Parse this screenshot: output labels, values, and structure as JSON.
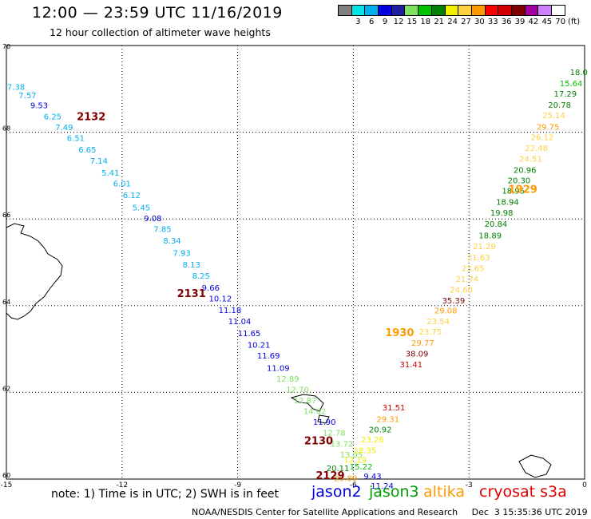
{
  "header": {
    "title": "12:00 — 23:59 UTC 11/16/2019",
    "subtitle": "12 hour collection of altimeter wave heights"
  },
  "legend": {
    "colors": [
      "#808080",
      "#00e5e5",
      "#00b0f0",
      "#0000e0",
      "#1f1fa0",
      "#80e060",
      "#00c000",
      "#008000",
      "#f0f000",
      "#ffd040",
      "#ff9a00",
      "#ff0000",
      "#d00000",
      "#800000",
      "#a000a0",
      "#cc80ff",
      "#ffffff",
      "#000000"
    ],
    "labels": [
      "3",
      "6",
      "9",
      "12",
      "15",
      "18",
      "21",
      "24",
      "27",
      "30",
      "33",
      "36",
      "39",
      "42",
      "45",
      "70",
      "(ft)"
    ]
  },
  "map": {
    "lat_ticks": [
      "70",
      "68",
      "66",
      "64",
      "62",
      "60"
    ],
    "lon_ticks": [
      "-15",
      "-12",
      "-9",
      "-6",
      "-3",
      "0"
    ],
    "passes": [
      {
        "label": "2132",
        "color": "#800000",
        "lon": -12.8,
        "lat": 68.28
      },
      {
        "label": "2131",
        "color": "#800000",
        "lon": -10.2,
        "lat": 64.2
      },
      {
        "label": "2130",
        "color": "#800000",
        "lon": -6.9,
        "lat": 60.8
      },
      {
        "label": "2129",
        "color": "#800000",
        "lon": -6.6,
        "lat": 60.0
      },
      {
        "label": "1929",
        "color": "#ff9a00",
        "lon": -1.6,
        "lat": 66.6
      },
      {
        "label": "1930",
        "color": "#ff9a00",
        "lon": -4.8,
        "lat": 63.3
      }
    ],
    "swh": [
      {
        "v": "7.38",
        "c": "#00b0f0",
        "lon": -14.75,
        "lat": 68.98
      },
      {
        "v": "7.57",
        "c": "#00b0f0",
        "lon": -14.45,
        "lat": 68.78
      },
      {
        "v": "9.53",
        "c": "#0000e0",
        "lon": -14.15,
        "lat": 68.55
      },
      {
        "v": "6.25",
        "c": "#00b0f0",
        "lon": -13.8,
        "lat": 68.3
      },
      {
        "v": "7.49",
        "c": "#00b0f0",
        "lon": -13.5,
        "lat": 68.05
      },
      {
        "v": "6.51",
        "c": "#00b0f0",
        "lon": -13.2,
        "lat": 67.8
      },
      {
        "v": "6.65",
        "c": "#00b0f0",
        "lon": -12.9,
        "lat": 67.53
      },
      {
        "v": "7.14",
        "c": "#00b0f0",
        "lon": -12.6,
        "lat": 67.27
      },
      {
        "v": "5.41",
        "c": "#00b0f0",
        "lon": -12.3,
        "lat": 67.0
      },
      {
        "v": "6.01",
        "c": "#00b0f0",
        "lon": -12.0,
        "lat": 66.75
      },
      {
        "v": "6.12",
        "c": "#00b0f0",
        "lon": -11.75,
        "lat": 66.48
      },
      {
        "v": "5.45",
        "c": "#00b0f0",
        "lon": -11.5,
        "lat": 66.2
      },
      {
        "v": "9.08",
        "c": "#0000e0",
        "lon": -11.2,
        "lat": 65.95
      },
      {
        "v": "7.85",
        "c": "#00b0f0",
        "lon": -10.95,
        "lat": 65.7
      },
      {
        "v": "8.34",
        "c": "#00b0f0",
        "lon": -10.7,
        "lat": 65.43
      },
      {
        "v": "7.93",
        "c": "#00b0f0",
        "lon": -10.45,
        "lat": 65.15
      },
      {
        "v": "8.13",
        "c": "#00b0f0",
        "lon": -10.2,
        "lat": 64.88
      },
      {
        "v": "8.25",
        "c": "#00b0f0",
        "lon": -9.95,
        "lat": 64.62
      },
      {
        "v": "9.66",
        "c": "#0000e0",
        "lon": -9.7,
        "lat": 64.35
      },
      {
        "v": "10.12",
        "c": "#0000e0",
        "lon": -9.45,
        "lat": 64.1
      },
      {
        "v": "11.18",
        "c": "#0000e0",
        "lon": -9.2,
        "lat": 63.83
      },
      {
        "v": "11.04",
        "c": "#0000e0",
        "lon": -8.95,
        "lat": 63.57
      },
      {
        "v": "11.65",
        "c": "#0000e0",
        "lon": -8.7,
        "lat": 63.3
      },
      {
        "v": "10.21",
        "c": "#0000e0",
        "lon": -8.45,
        "lat": 63.03
      },
      {
        "v": "11.69",
        "c": "#0000e0",
        "lon": -8.2,
        "lat": 62.78
      },
      {
        "v": "11.09",
        "c": "#0000e0",
        "lon": -7.95,
        "lat": 62.5
      },
      {
        "v": "12.89",
        "c": "#80e060",
        "lon": -7.7,
        "lat": 62.25
      },
      {
        "v": "12.70",
        "c": "#80e060",
        "lon": -7.45,
        "lat": 62.0
      },
      {
        "v": "12.87",
        "c": "#80e060",
        "lon": -7.25,
        "lat": 61.75
      },
      {
        "v": "14.02",
        "c": "#80e060",
        "lon": -7.0,
        "lat": 61.5
      },
      {
        "v": "11.90",
        "c": "#0000e0",
        "lon": -6.75,
        "lat": 61.25
      },
      {
        "v": "12.78",
        "c": "#80e060",
        "lon": -6.5,
        "lat": 61.0
      },
      {
        "v": "13.72",
        "c": "#80e060",
        "lon": -6.3,
        "lat": 60.75
      },
      {
        "v": "13.05",
        "c": "#80e060",
        "lon": -6.05,
        "lat": 60.5
      },
      {
        "v": "15.22",
        "c": "#00c000",
        "lon": -5.8,
        "lat": 60.22
      },
      {
        "v": "9.43",
        "c": "#0000e0",
        "lon": -5.5,
        "lat": 60.0
      },
      {
        "v": "11.24",
        "c": "#0000e0",
        "lon": -5.25,
        "lat": 59.78
      },
      {
        "v": "20.11",
        "c": "#008000",
        "lon": -6.4,
        "lat": 60.18
      },
      {
        "v": "29.89",
        "c": "#ff9a00",
        "lon": -6.2,
        "lat": 59.95
      },
      {
        "v": "12.19",
        "c": "#f0f000",
        "lon": -5.95,
        "lat": 60.38
      },
      {
        "v": "18.35",
        "c": "#f0f000",
        "lon": -5.7,
        "lat": 60.6
      },
      {
        "v": "23.26",
        "c": "#f0f000",
        "lon": -5.5,
        "lat": 60.85
      },
      {
        "v": "20.92",
        "c": "#008000",
        "lon": -5.3,
        "lat": 61.08
      },
      {
        "v": "29.31",
        "c": "#ff9a00",
        "lon": -5.1,
        "lat": 61.32
      },
      {
        "v": "31.51",
        "c": "#d00000",
        "lon": -4.95,
        "lat": 61.58
      },
      {
        "v": "31.41",
        "c": "#d00000",
        "lon": -4.5,
        "lat": 62.58
      },
      {
        "v": "38.09",
        "c": "#800000",
        "lon": -4.35,
        "lat": 62.83
      },
      {
        "v": "29.77",
        "c": "#ff9a00",
        "lon": -4.2,
        "lat": 63.08
      },
      {
        "v": "23.75",
        "c": "#ffd040",
        "lon": -4.0,
        "lat": 63.33
      },
      {
        "v": "23.54",
        "c": "#ffd040",
        "lon": -3.8,
        "lat": 63.57
      },
      {
        "v": "29.08",
        "c": "#ff9a00",
        "lon": -3.6,
        "lat": 63.82
      },
      {
        "v": "35.39",
        "c": "#800000",
        "lon": -3.4,
        "lat": 64.05
      },
      {
        "v": "24.60",
        "c": "#ffd040",
        "lon": -3.2,
        "lat": 64.3
      },
      {
        "v": "21.74",
        "c": "#ffd040",
        "lon": -3.05,
        "lat": 64.55
      },
      {
        "v": "23.65",
        "c": "#ffd040",
        "lon": -2.9,
        "lat": 64.8
      },
      {
        "v": "21.63",
        "c": "#ffd040",
        "lon": -2.75,
        "lat": 65.05
      },
      {
        "v": "21.29",
        "c": "#ffd040",
        "lon": -2.6,
        "lat": 65.3
      },
      {
        "v": "18.89",
        "c": "#008000",
        "lon": -2.45,
        "lat": 65.55
      },
      {
        "v": "20.84",
        "c": "#008000",
        "lon": -2.3,
        "lat": 65.82
      },
      {
        "v": "19.98",
        "c": "#008000",
        "lon": -2.15,
        "lat": 66.08
      },
      {
        "v": "18.94",
        "c": "#008000",
        "lon": -2.0,
        "lat": 66.33
      },
      {
        "v": "18.95",
        "c": "#008000",
        "lon": -1.85,
        "lat": 66.58
      },
      {
        "v": "20.30",
        "c": "#008000",
        "lon": -1.7,
        "lat": 66.82
      },
      {
        "v": "20.96",
        "c": "#008000",
        "lon": -1.55,
        "lat": 67.06
      },
      {
        "v": "24.51",
        "c": "#ffd040",
        "lon": -1.4,
        "lat": 67.32
      },
      {
        "v": "22.48",
        "c": "#ffd040",
        "lon": -1.25,
        "lat": 67.57
      },
      {
        "v": "26.12",
        "c": "#ffd040",
        "lon": -1.1,
        "lat": 67.82
      },
      {
        "v": "29.75",
        "c": "#ff9a00",
        "lon": -0.95,
        "lat": 68.06
      },
      {
        "v": "25.14",
        "c": "#ffd040",
        "lon": -0.8,
        "lat": 68.32
      },
      {
        "v": "20.78",
        "c": "#008000",
        "lon": -0.65,
        "lat": 68.56
      },
      {
        "v": "17.29",
        "c": "#008000",
        "lon": -0.5,
        "lat": 68.82
      },
      {
        "v": "15.64",
        "c": "#00c000",
        "lon": -0.35,
        "lat": 69.06
      },
      {
        "v": "18.0",
        "c": "#008000",
        "lon": -0.15,
        "lat": 69.32
      }
    ]
  },
  "note": "note: 1) Time is in UTC; 2) SWH is in feet",
  "satellites": [
    {
      "name": "jason2",
      "color": "#0000e0"
    },
    {
      "name": "jason3",
      "color": "#00a000"
    },
    {
      "name": "altika",
      "color": "#ff9a00"
    },
    {
      "name": "cryosat s3a",
      "color": "#e00000"
    }
  ],
  "footer": "NOAA/NESDIS Center for Satellite Applications and Research     Dec  3 15:35:36 UTC 2019"
}
